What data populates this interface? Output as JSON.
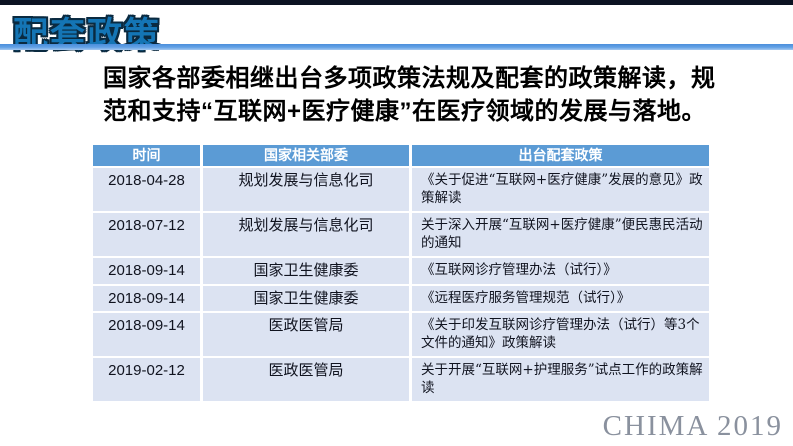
{
  "slide": {
    "title": "配套政策",
    "intro_line1": "国家各部委相继出台多项政策法规及配套的政策解读，规",
    "intro_line2": "范和支持“互联网+医疗健康”在医疗领域的发展与落地。",
    "footer": "CHIMA 2019"
  },
  "table": {
    "headers": [
      "时间",
      "国家相关部委",
      "出台配套政策"
    ],
    "rows": [
      [
        "2018-04-28",
        "规划发展与信息化司",
        "《关于促进“互联网+医疗健康”发展的意见》政策解读"
      ],
      [
        "2018-07-12",
        "规划发展与信息化司",
        "关于深入开展“互联网+医疗健康”便民惠民活动的通知"
      ],
      [
        "2018-09-14",
        "国家卫生健康委",
        "《互联网诊疗管理办法（试行）》"
      ],
      [
        "2018-09-14",
        "国家卫生健康委",
        "《远程医疗服务管理规范（试行）》"
      ],
      [
        "2018-09-14",
        "医政医管局",
        "《关于印发互联网诊疗管理办法（试行）等3个文件的通知》政策解读"
      ],
      [
        "2019-02-12",
        "医政医管局",
        "关于开展“互联网+护理服务”试点工作的政策解读"
      ]
    ]
  },
  "colors": {
    "top_bar": "#0c1322",
    "title_fill": "#1475b5",
    "title_outline": "#0a2a40",
    "underline_blue": "#4b8edb",
    "table_header_bg": "#5b9bd5",
    "table_row_bg": "#dce3f2",
    "body_text": "#000000",
    "footer_gray": "#8a919e"
  }
}
